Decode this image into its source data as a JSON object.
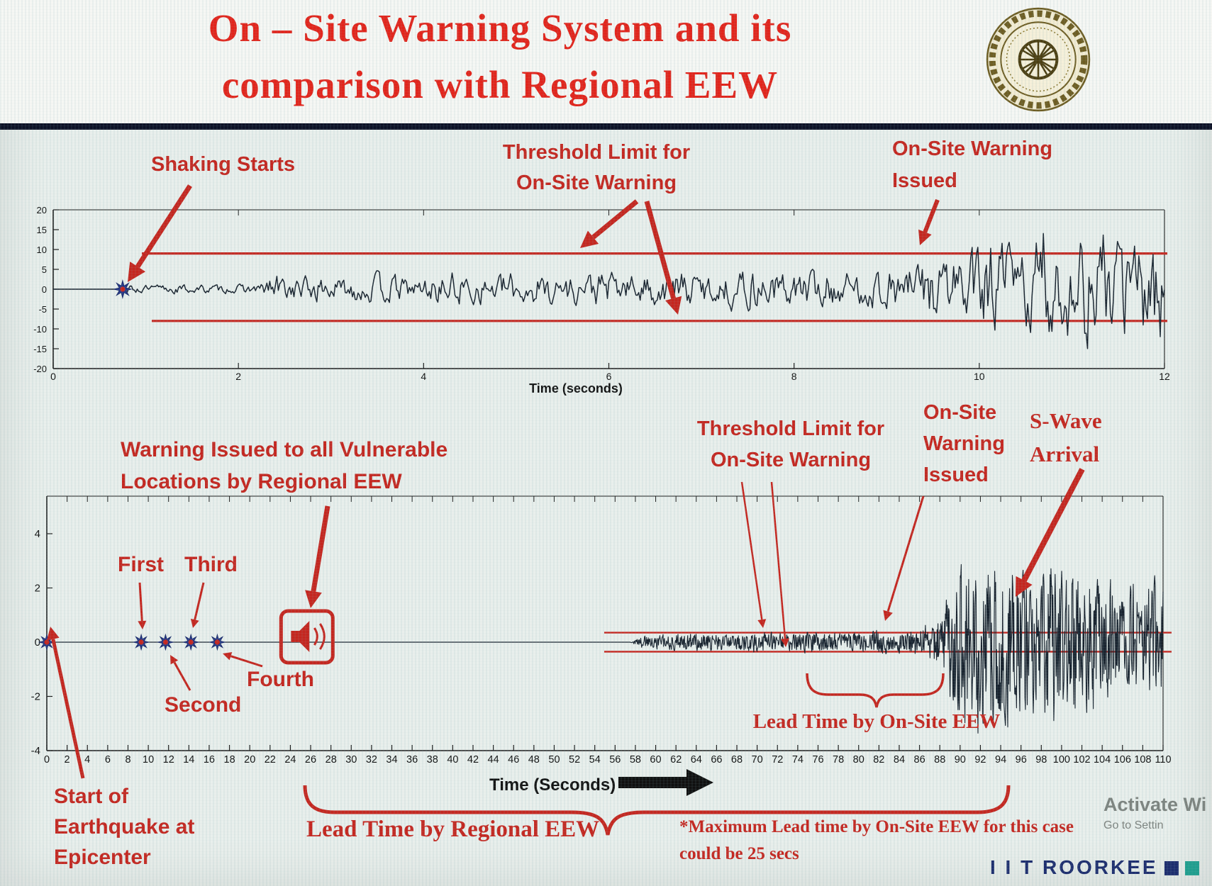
{
  "slide": {
    "title_line1": "On – Site Warning System and its",
    "title_line2": "comparison with Regional EEW"
  },
  "top_chart": {
    "labels": {
      "shaking_starts": "Shaking Starts",
      "threshold_l1": "Threshold Limit for",
      "threshold_l2": "On-Site Warning",
      "issued_l1": "On-Site Warning",
      "issued_l2": "Issued",
      "xlabel": "Time (seconds)"
    }
  },
  "bottom_chart": {
    "labels": {
      "regional_l1": "Warning Issued to all Vulnerable",
      "regional_l2": "Locations by Regional EEW",
      "first": "First",
      "second": "Second",
      "third": "Third",
      "fourth": "Fourth",
      "threshold_l1": "Threshold Limit for",
      "threshold_l2": "On-Site Warning",
      "issued_l1": "On-Site",
      "issued_l2": "Warning",
      "issued_l3": "Issued",
      "swave_l1": "S-Wave",
      "swave_l2": "Arrival",
      "lead_onsite": "Lead Time by On-Site EEW",
      "lead_regional": "Lead Time by Regional EEW",
      "max_lead_l1": "*Maximum Lead time by On-Site EEW for this case",
      "max_lead_l2": "could be 25 secs",
      "start_l1": "Start of",
      "start_l2": "Earthquake at",
      "start_l3": "Epicenter",
      "xlabel": "Time (Seconds)"
    }
  },
  "footer": {
    "brand": "I I T ROORKEE",
    "watermark_l1": "Activate Wi",
    "watermark_l2": "Go to Settin"
  },
  "colors": {
    "title_red": "#e3241b",
    "annotation_red": "#c5261f",
    "waveform": "#18222e",
    "brand_navy": "#1d2d6e",
    "brand_green": "#1f9e8e"
  },
  "chart_data": [
    {
      "id": "onsite_accelerogram",
      "type": "line",
      "title": "",
      "xlabel": "Time (seconds)",
      "ylabel": "",
      "xlim": [
        0,
        12
      ],
      "ylim": [
        -20,
        20
      ],
      "xticks": [
        0,
        2,
        4,
        6,
        8,
        10,
        12
      ],
      "yticks": [
        20,
        15,
        10,
        5,
        0,
        -5,
        -10,
        -15,
        -20
      ],
      "grid": false,
      "legend": false,
      "threshold": {
        "upper": 9,
        "lower": -8,
        "color": "#c5261f"
      },
      "events": {
        "shaking_starts_s": 0.75,
        "onsite_warning_issued_s": 9.4
      },
      "waveform": {
        "seed": 13,
        "samples": 780,
        "smooth": 0.5,
        "gain": 1.55,
        "envelope": [
          [
            0,
            0
          ],
          [
            0.72,
            0
          ],
          [
            0.8,
            0.9
          ],
          [
            1.3,
            1.2
          ],
          [
            1.9,
            1.0
          ],
          [
            2.25,
            1.4
          ],
          [
            2.35,
            4.6
          ],
          [
            2.55,
            2.6
          ],
          [
            2.8,
            3.6
          ],
          [
            3.1,
            2.6
          ],
          [
            3.5,
            3.8
          ],
          [
            3.9,
            2.6
          ],
          [
            4.3,
            4.4
          ],
          [
            4.7,
            3.2
          ],
          [
            5.1,
            4.6
          ],
          [
            5.5,
            3.4
          ],
          [
            5.9,
            4.8
          ],
          [
            6.3,
            3.6
          ],
          [
            6.7,
            5.0
          ],
          [
            7.1,
            3.8
          ],
          [
            7.5,
            5.2
          ],
          [
            7.9,
            4.0
          ],
          [
            8.3,
            5.4
          ],
          [
            8.7,
            4.2
          ],
          [
            9.0,
            5.0
          ],
          [
            9.3,
            6.5
          ],
          [
            9.5,
            9.0
          ],
          [
            9.7,
            12.0
          ],
          [
            9.95,
            9.0
          ],
          [
            10.2,
            14.0
          ],
          [
            10.45,
            10.0
          ],
          [
            10.7,
            16.5
          ],
          [
            10.95,
            12.0
          ],
          [
            11.2,
            17.0
          ],
          [
            11.5,
            12.0
          ],
          [
            11.75,
            16.0
          ],
          [
            12,
            13.0
          ]
        ]
      }
    },
    {
      "id": "regional_vs_onsite_record",
      "type": "line",
      "title": "",
      "xlabel": "Time (Seconds)",
      "ylabel": "",
      "xlim": [
        0,
        110
      ],
      "ylim": [
        -4,
        4
      ],
      "xticks": [
        0,
        2,
        4,
        6,
        8,
        10,
        12,
        14,
        16,
        18,
        20,
        22,
        24,
        26,
        28,
        30,
        32,
        34,
        36,
        38,
        40,
        42,
        44,
        46,
        48,
        50,
        52,
        54,
        56,
        58,
        60,
        62,
        64,
        66,
        68,
        70,
        72,
        74,
        76,
        78,
        80,
        82,
        84,
        86,
        88,
        90,
        92,
        94,
        96,
        98,
        100,
        102,
        104,
        106,
        108,
        110
      ],
      "yticks": [
        4,
        2,
        0,
        -2,
        -4
      ],
      "grid": false,
      "legend": false,
      "threshold": {
        "upper": 0.35,
        "lower": -0.35,
        "color": "#c5261f"
      },
      "p_wave_detections": [
        {
          "label": "Start of Earthquake at Epicenter",
          "t": 0
        },
        {
          "label": "First",
          "t": 9.3
        },
        {
          "label": "Second",
          "t": 11.7
        },
        {
          "label": "Third",
          "t": 14.2
        },
        {
          "label": "Fourth",
          "t": 16.8
        }
      ],
      "events": {
        "regional_warning_issued_s": 25.6,
        "onsite_warning_issued_s": 82,
        "s_wave_arrival_s": 93,
        "max_onsite_lead_time_s": 25
      },
      "waveform": {
        "seed": 99,
        "samples": 2400,
        "smooth": 0.25,
        "gain": 1.1,
        "envelope": [
          [
            0,
            0
          ],
          [
            57.5,
            0
          ],
          [
            58.5,
            0.22
          ],
          [
            61,
            0.3
          ],
          [
            64,
            0.38
          ],
          [
            67,
            0.3
          ],
          [
            70,
            0.42
          ],
          [
            73,
            0.33
          ],
          [
            76,
            0.45
          ],
          [
            79,
            0.36
          ],
          [
            82,
            0.5
          ],
          [
            84,
            0.42
          ],
          [
            86,
            0.6
          ],
          [
            87.5,
            0.9
          ],
          [
            88.5,
            1.6
          ],
          [
            89.5,
            2.8
          ],
          [
            90.3,
            3.6
          ],
          [
            91,
            2.6
          ],
          [
            91.8,
            3.8
          ],
          [
            92.5,
            2.8
          ],
          [
            93.3,
            4.0
          ],
          [
            94,
            3.0
          ],
          [
            95,
            3.8
          ],
          [
            96,
            2.6
          ],
          [
            97,
            3.4
          ],
          [
            98,
            2.4
          ],
          [
            99,
            3.6
          ],
          [
            100,
            2.8
          ],
          [
            101,
            3.3
          ],
          [
            102,
            2.2
          ],
          [
            103,
            3.0
          ],
          [
            104,
            2.0
          ],
          [
            105,
            2.7
          ],
          [
            106,
            1.8
          ],
          [
            107,
            2.4
          ],
          [
            108,
            1.9
          ],
          [
            109,
            2.5
          ],
          [
            110,
            2.1
          ]
        ]
      }
    }
  ]
}
